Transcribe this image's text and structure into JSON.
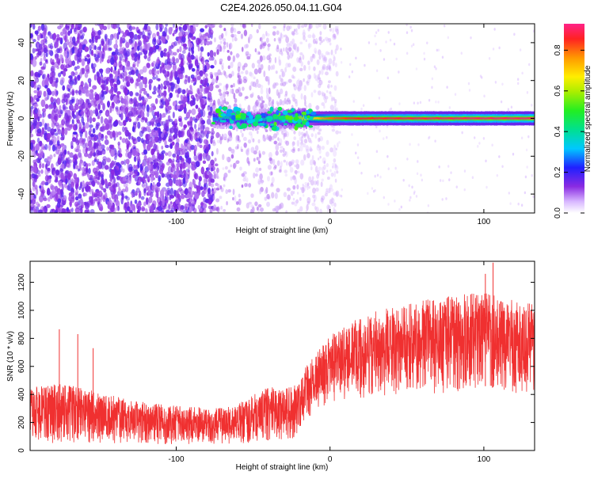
{
  "title": "C2E4.2026.050.04.11.G04",
  "colors": {
    "snr_line": "#f03030",
    "speckle": "#7a2cf0",
    "ridge_core": "#e23a3a",
    "ridge_edge": "#27d06a"
  },
  "chart_data": [
    {
      "type": "heatmap",
      "title": "C2E4.2026.050.04.11.G04",
      "xlabel": "Height of straight line (km)",
      "ylabel": "Frequency (Hz)",
      "xlim": [
        -195,
        133
      ],
      "ylim": [
        -50,
        50
      ],
      "xticks": [
        -100,
        0,
        100
      ],
      "xtick_labels": [
        "-100",
        "0",
        "100"
      ],
      "yticks": [
        -40,
        -20,
        0,
        20,
        40
      ],
      "ytick_labels": [
        "-40",
        "-20",
        "0",
        "20",
        "40"
      ],
      "colorbar": {
        "label": "Normalized spectral amplitude",
        "range": [
          0.0,
          0.93
        ],
        "ticks": [
          0.0,
          0.2,
          0.4,
          0.6,
          0.8
        ],
        "tick_labels": [
          "0.0",
          "0.2",
          "0.4",
          "0.6",
          "0.8"
        ]
      },
      "ridge": {
        "x": [
          -76,
          -60,
          -50,
          -40,
          -25,
          -10,
          0,
          15,
          50,
          100,
          133
        ],
        "frequency": [
          0,
          0,
          -1,
          0,
          0,
          0,
          0,
          0,
          0,
          0,
          0
        ],
        "amplitude": [
          0.35,
          0.4,
          0.35,
          0.4,
          0.55,
          0.7,
          0.8,
          0.85,
          0.88,
          0.9,
          0.9
        ]
      },
      "noise_region": {
        "dense": [
          -195,
          -76
        ],
        "sparse": [
          -76,
          -25
        ],
        "amplitude": 0.15
      },
      "grid": false
    },
    {
      "type": "line",
      "xlabel": "Height of straight line (km)",
      "ylabel": "SNR (10 * v/v)",
      "xlim": [
        -195,
        133
      ],
      "ylim": [
        0,
        1350
      ],
      "xticks": [
        -100,
        0,
        100
      ],
      "xtick_labels": [
        "-100",
        "0",
        "100"
      ],
      "yticks": [
        0,
        200,
        400,
        600,
        800,
        1000,
        1200
      ],
      "ytick_labels": [
        "0",
        "200",
        "400",
        "600",
        "800",
        "1000",
        "1200"
      ],
      "envelope": {
        "x": [
          -195,
          -175,
          -150,
          -125,
          -100,
          -75,
          -60,
          -50,
          -40,
          -30,
          -20,
          -15,
          -10,
          -5,
          0,
          10,
          25,
          50,
          75,
          100,
          115,
          133
        ],
        "low": [
          60,
          50,
          45,
          40,
          40,
          45,
          50,
          50,
          60,
          60,
          100,
          200,
          260,
          300,
          320,
          360,
          380,
          400,
          410,
          420,
          400,
          380
        ],
        "high": [
          450,
          480,
          420,
          350,
          320,
          300,
          330,
          400,
          460,
          440,
          480,
          620,
          680,
          760,
          820,
          900,
          980,
          1050,
          1100,
          1130,
          1080,
          1050
        ]
      },
      "spikes": [
        {
          "x": -176,
          "y": 865
        },
        {
          "x": -164,
          "y": 830
        },
        {
          "x": -154,
          "y": 730
        },
        {
          "x": 106,
          "y": 1340
        },
        {
          "x": 101,
          "y": 1260
        }
      ],
      "grid": false
    }
  ]
}
